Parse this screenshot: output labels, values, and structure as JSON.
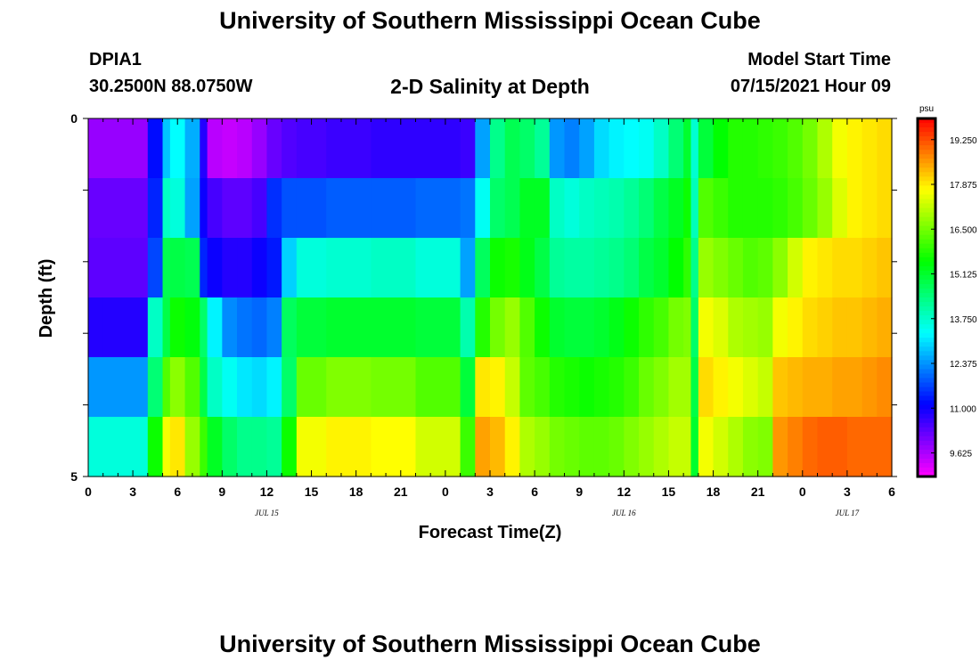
{
  "header": {
    "title": "University of Southern Mississippi Ocean Cube",
    "station": "DPIA1",
    "coords": "30.2500N  88.0750W",
    "subtitle": "2-D Salinity at Depth",
    "model_start_label": "Model Start Time",
    "model_start_value": "07/15/2021 Hour 09"
  },
  "footer": {
    "title": "University of Southern Mississippi Ocean Cube"
  },
  "chart_data": {
    "type": "heatmap",
    "title": "2-D Salinity at Depth",
    "xlabel": "Forecast Time(Z)",
    "ylabel": "Depth (ft)",
    "x_range_hours": [
      0,
      54
    ],
    "x_tick_labels": [
      "0",
      "3",
      "6",
      "9",
      "12",
      "15",
      "18",
      "21",
      "0",
      "3",
      "6",
      "9",
      "12",
      "15",
      "18",
      "21",
      "0",
      "3",
      "6"
    ],
    "date_labels": [
      {
        "text": "JUL 15",
        "hour": 12
      },
      {
        "text": "JUL 16",
        "hour": 36
      },
      {
        "text": "JUL 17",
        "hour": 51
      }
    ],
    "y_range": [
      0,
      5
    ],
    "y_tick_labels": [
      "0",
      "5"
    ],
    "colorbar": {
      "unit": "psu",
      "min": 8.9,
      "max": 19.9,
      "tick_labels": [
        "19.250",
        "17.875",
        "16.500",
        "15.125",
        "13.750",
        "12.375",
        "11.000",
        "9.625"
      ],
      "tick_values": [
        19.25,
        17.875,
        16.5,
        15.125,
        13.75,
        12.375,
        11.0,
        9.625
      ]
    },
    "depth_layers": 6,
    "hour_breakpoints": [
      0,
      1,
      4,
      5,
      5.5,
      6.5,
      7.5,
      8,
      9,
      10,
      11,
      12,
      13,
      14,
      16,
      19,
      22,
      25,
      26,
      27,
      28,
      29,
      30,
      31,
      32,
      33,
      34,
      35,
      36,
      37,
      38,
      39,
      40,
      40.5,
      41,
      42,
      43,
      44,
      45,
      46,
      47,
      48,
      49,
      50,
      51,
      52,
      53,
      54
    ],
    "salinity_psu": [
      [
        9.8,
        9.8,
        11.2,
        12.8,
        13.3,
        12.6,
        10.8,
        9.5,
        9.4,
        9.5,
        9.8,
        10.2,
        10.4,
        10.5,
        10.6,
        10.7,
        10.7,
        10.6,
        12.5,
        14.3,
        14.8,
        14.6,
        14.2,
        12.4,
        12.2,
        12.5,
        13.0,
        13.2,
        13.3,
        13.4,
        13.8,
        14.5,
        15.1,
        13.7,
        15.0,
        15.5,
        15.8,
        15.8,
        15.9,
        16.0,
        16.2,
        16.5,
        17.0,
        17.6,
        17.8,
        17.9,
        18.0
      ],
      [
        10.2,
        10.2,
        11.4,
        13.8,
        13.6,
        12.5,
        11.0,
        10.5,
        10.3,
        10.3,
        10.5,
        11.5,
        11.8,
        11.8,
        11.9,
        11.9,
        12.0,
        12.1,
        13.4,
        14.6,
        14.8,
        15.2,
        15.2,
        13.8,
        13.6,
        13.8,
        13.9,
        14.0,
        14.2,
        14.5,
        14.9,
        15.2,
        15.6,
        13.9,
        16.2,
        16.0,
        15.8,
        15.8,
        15.8,
        15.9,
        16.1,
        16.4,
        16.8,
        17.4,
        17.8,
        17.9,
        18.0
      ],
      [
        10.3,
        10.3,
        11.7,
        14.8,
        14.9,
        14.8,
        11.4,
        11.0,
        10.8,
        10.8,
        11.0,
        11.3,
        12.9,
        13.6,
        13.7,
        13.8,
        13.6,
        12.5,
        14.7,
        15.6,
        15.7,
        15.3,
        14.9,
        14.2,
        14.1,
        14.1,
        14.2,
        14.3,
        14.5,
        14.9,
        15.1,
        15.5,
        15.9,
        14.3,
        16.8,
        16.6,
        16.4,
        16.2,
        16.3,
        16.7,
        17.3,
        17.8,
        17.9,
        18.0,
        18.0,
        18.1,
        18.2
      ],
      [
        10.8,
        10.8,
        13.8,
        14.9,
        15.6,
        15.4,
        14.6,
        13.2,
        12.3,
        12.1,
        12.0,
        12.2,
        14.7,
        15.0,
        15.1,
        15.1,
        15.0,
        14.0,
        15.8,
        16.5,
        16.8,
        16.2,
        15.6,
        15.1,
        15.0,
        15.0,
        15.1,
        15.3,
        15.6,
        15.9,
        16.1,
        16.5,
        16.6,
        14.6,
        17.6,
        17.4,
        17.0,
        16.9,
        16.8,
        17.6,
        17.8,
        18.0,
        18.1,
        18.2,
        18.2,
        18.3,
        18.4
      ],
      [
        12.4,
        12.4,
        14.5,
        16.2,
        16.7,
        16.2,
        14.9,
        13.8,
        13.4,
        13.1,
        13.0,
        13.2,
        14.6,
        16.4,
        16.6,
        16.5,
        16.2,
        15.0,
        17.9,
        17.8,
        17.2,
        16.3,
        16.1,
        15.8,
        15.7,
        15.6,
        15.7,
        15.8,
        16.0,
        16.4,
        16.6,
        16.9,
        16.9,
        14.9,
        18.0,
        17.8,
        17.6,
        17.4,
        17.2,
        18.2,
        18.3,
        18.4,
        18.4,
        18.5,
        18.5,
        18.6,
        18.7
      ],
      [
        13.6,
        13.6,
        15.6,
        17.6,
        17.9,
        16.8,
        16.0,
        15.2,
        14.6,
        14.3,
        14.3,
        14.2,
        15.6,
        17.6,
        17.8,
        17.7,
        17.3,
        16.0,
        18.5,
        18.3,
        17.8,
        17.0,
        16.8,
        16.5,
        16.4,
        16.3,
        16.3,
        16.4,
        16.6,
        16.8,
        17.0,
        17.2,
        17.2,
        15.1,
        17.6,
        17.3,
        17.0,
        16.7,
        16.6,
        18.6,
        18.8,
        19.0,
        19.1,
        19.1,
        19.0,
        19.0,
        19.0
      ]
    ]
  }
}
